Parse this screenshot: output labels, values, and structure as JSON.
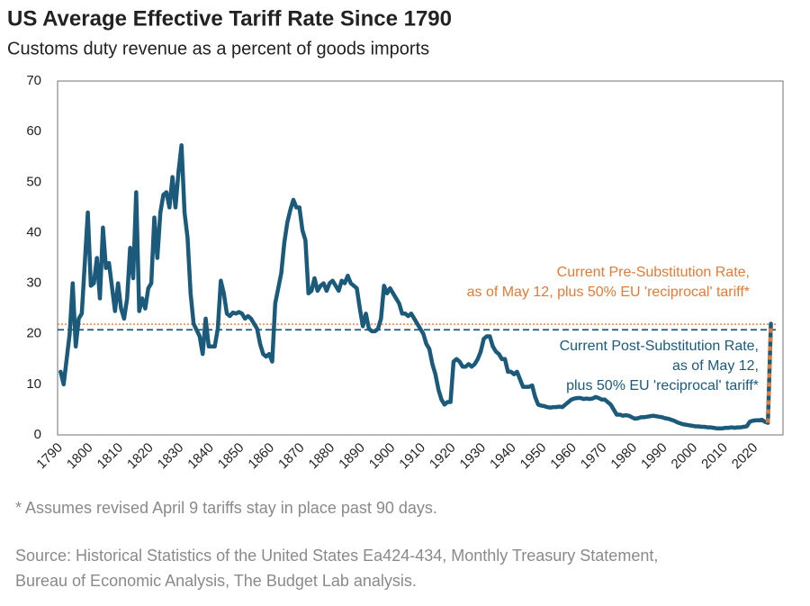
{
  "chart_data": {
    "type": "line",
    "title": "US Average Effective Tariff Rate Since 1790",
    "subtitle": "Customs duty revenue as a percent of goods imports",
    "xlim": [
      1789,
      2029
    ],
    "xticks": [
      1790,
      1800,
      1810,
      1820,
      1830,
      1840,
      1850,
      1860,
      1870,
      1880,
      1890,
      1900,
      1910,
      1920,
      1930,
      1940,
      1950,
      1960,
      1970,
      1980,
      1990,
      2000,
      2010,
      2020
    ],
    "ylim": [
      0,
      70
    ],
    "yticks": [
      0,
      10,
      20,
      30,
      40,
      50,
      60,
      70
    ],
    "grid": false,
    "series": [
      {
        "color": "#1b5a7a",
        "dashed": false,
        "x": [
          1790,
          1791,
          1793,
          1794,
          1795,
          1796,
          1797,
          1799,
          1800,
          1801,
          1802,
          1803,
          1804,
          1805,
          1806,
          1808,
          1809,
          1810,
          1811,
          1812,
          1813,
          1814,
          1815,
          1816,
          1817,
          1818,
          1819,
          1820,
          1821,
          1822,
          1823,
          1824,
          1825,
          1826,
          1827,
          1828,
          1829,
          1830,
          1831,
          1832,
          1833,
          1834,
          1836,
          1837,
          1838,
          1839,
          1841,
          1842,
          1843,
          1844,
          1845,
          1846,
          1847,
          1848,
          1849,
          1850,
          1851,
          1852,
          1853,
          1854,
          1855,
          1856,
          1857,
          1858,
          1859,
          1860,
          1861,
          1862,
          1863,
          1864,
          1865,
          1866,
          1867,
          1868,
          1869,
          1870,
          1871,
          1872,
          1873,
          1874,
          1875,
          1876,
          1877,
          1878,
          1879,
          1880,
          1881,
          1882,
          1883,
          1884,
          1885,
          1886,
          1887,
          1888,
          1889,
          1890,
          1891,
          1892,
          1893,
          1894,
          1895,
          1896,
          1897,
          1898,
          1899,
          1900,
          1901,
          1902,
          1903,
          1904,
          1905,
          1906,
          1907,
          1908,
          1909,
          1910,
          1911,
          1912,
          1913,
          1914,
          1915,
          1916,
          1917,
          1918,
          1919,
          1920,
          1921,
          1922,
          1923,
          1924,
          1925,
          1926,
          1927,
          1928,
          1929,
          1930,
          1931,
          1932,
          1933,
          1934,
          1935,
          1936,
          1937,
          1938,
          1939,
          1940,
          1941,
          1942,
          1943,
          1944,
          1945,
          1946,
          1947,
          1948,
          1949,
          1950,
          1951,
          1952,
          1953,
          1954,
          1955,
          1956,
          1957,
          1958,
          1959,
          1960,
          1961,
          1962,
          1963,
          1964,
          1965,
          1966,
          1967,
          1968,
          1969,
          1970,
          1971,
          1972,
          1973,
          1974,
          1975,
          1976,
          1977,
          1978,
          1979,
          1980,
          1981,
          1982,
          1983,
          1984,
          1985,
          1986,
          1987,
          1988,
          1989,
          1990,
          1991,
          1992,
          1993,
          1994,
          1995,
          1996,
          1997,
          1998,
          1999,
          2000,
          2001,
          2002,
          2003,
          2004,
          2005,
          2006,
          2007,
          2008,
          2009,
          2010,
          2011,
          2012,
          2013,
          2014,
          2015,
          2016,
          2017,
          2018,
          2019,
          2020,
          2021,
          2022,
          2023,
          2024
        ],
        "values": [
          12.5,
          10,
          20,
          30,
          17.5,
          23,
          24,
          44,
          29.5,
          30,
          35,
          27,
          41,
          33,
          34,
          24.5,
          30,
          25,
          23,
          27,
          37,
          31,
          48,
          24.5,
          27,
          25,
          29,
          30,
          43,
          35,
          44,
          47.5,
          48,
          45,
          51,
          45,
          52,
          57.3,
          44,
          39,
          28,
          22,
          19.5,
          16,
          23,
          17.5,
          17.5,
          21,
          30.5,
          28,
          24,
          23.5,
          24.2,
          24,
          24.3,
          24,
          23,
          23.5,
          23,
          22,
          21,
          18,
          16,
          15.5,
          16,
          14.5,
          26,
          29,
          32,
          38,
          42,
          44.5,
          46.5,
          45,
          45,
          40.5,
          38.5,
          28,
          28.5,
          31,
          28.5,
          29.5,
          30,
          28.5,
          30,
          30.5,
          29.5,
          28.5,
          30.5,
          30,
          31.5,
          30,
          29.5,
          29,
          25,
          21.5,
          24,
          21,
          20.5,
          20.5,
          21,
          23,
          29.5,
          28,
          29,
          28,
          27,
          26,
          24,
          24,
          23.5,
          24,
          23,
          22,
          21,
          20,
          18,
          17,
          14,
          12,
          9,
          7,
          6,
          6.5,
          6.5,
          14.5,
          15,
          14.5,
          13.5,
          13.5,
          14,
          13.5,
          14,
          15,
          16.5,
          19,
          19.5,
          19.5,
          17.5,
          16.5,
          16,
          15,
          15,
          12.5,
          12.5,
          12,
          12.5,
          11,
          9.5,
          9.5,
          9.5,
          9.8,
          7.5,
          6,
          5.8,
          5.7,
          5.5,
          5.4,
          5.5,
          5.5,
          5.6,
          5.5,
          6,
          6.5,
          7,
          7.2,
          7.3,
          7.3,
          7.1,
          7.2,
          7.1,
          7.2,
          7.5,
          7.3,
          7,
          7,
          6.5,
          6,
          5,
          4,
          4,
          3.8,
          3.9,
          3.8,
          3.5,
          3.2,
          3.3,
          3.5,
          3.5,
          3.6,
          3.7,
          3.8,
          3.7,
          3.6,
          3.5,
          3.3,
          3.2,
          3,
          2.8,
          2.5,
          2.3,
          2.1,
          2,
          1.9,
          1.8,
          1.7,
          1.7,
          1.6,
          1.6,
          1.5,
          1.5,
          1.4,
          1.3,
          1.3,
          1.3,
          1.4,
          1.4,
          1.5,
          1.4,
          1.5,
          1.5,
          1.6,
          1.7,
          2.6,
          2.8,
          2.9,
          2.9,
          3,
          2.6,
          2.4
        ]
      },
      {
        "color": "#1b5a7a",
        "dash_color": "#e07b39",
        "dashed": true,
        "x": [
          2024,
          2025
        ],
        "values": [
          2.4,
          22
        ]
      }
    ],
    "reference_lines": [
      {
        "value": 21.9,
        "color": "#e07b39",
        "style": "dotted",
        "label_lines": [
          "Current Pre-Substitution Rate,",
          "as of May 12, plus 50% EU 'reciprocal' tariff*"
        ]
      },
      {
        "value": 20.8,
        "color": "#1b5a7a",
        "style": "dashed",
        "label_lines": [
          "Current Post-Substitution Rate,",
          "as of May 12,",
          "plus 50% EU 'reciprocal' tariff*"
        ]
      }
    ],
    "footnote": "* Assumes revised April 9 tariffs stay in place past 90 days.",
    "source_lines": [
      "Source: Historical Statistics of the United States Ea424-434, Monthly Treasury Statement,",
      "Bureau of  Economic Analysis, The Budget Lab analysis."
    ]
  }
}
